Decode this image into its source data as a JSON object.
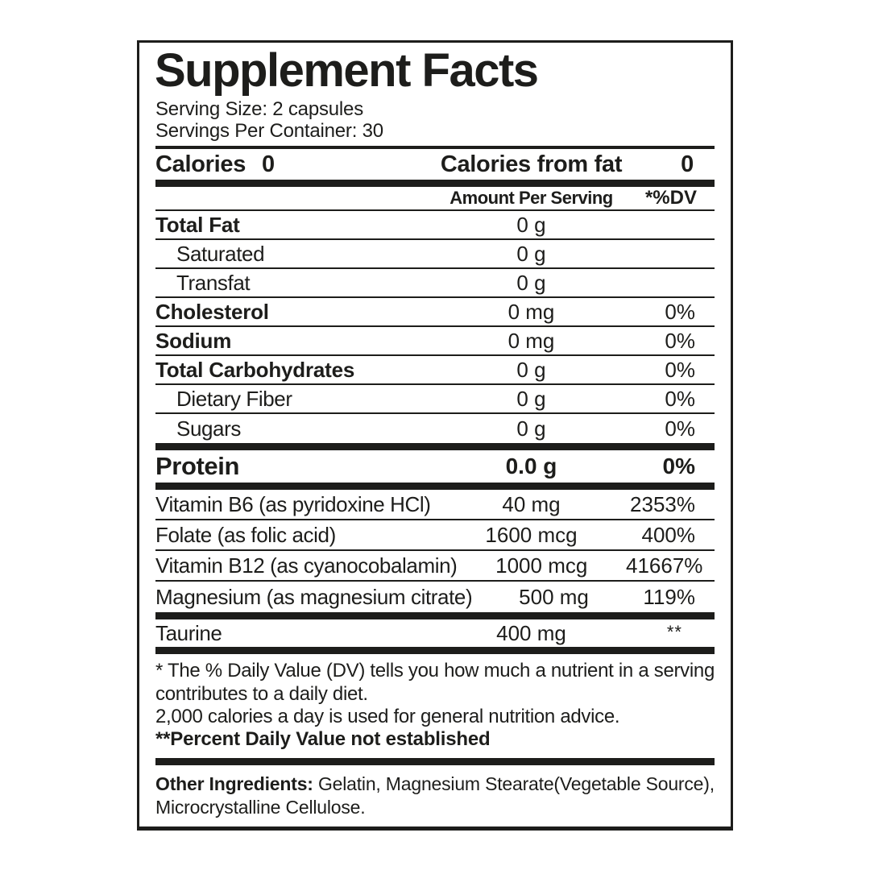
{
  "colors": {
    "ink": "#1d1d1b",
    "paper": "#ffffff"
  },
  "panel": {
    "title": "Supplement Facts",
    "serving_size": "Serving Size: 2 capsules",
    "servings_per_container": "Servings Per Container: 30",
    "calories_label": "Calories",
    "calories_value": "0",
    "calories_from_fat_label": "Calories from fat",
    "calories_from_fat_value": "0",
    "col_amount": "Amount Per Serving",
    "col_dv": "*%DV",
    "rows": [
      {
        "name": "Total Fat",
        "amount": "0 g",
        "dv": ""
      },
      {
        "name": "Saturated",
        "amount": "0 g",
        "dv": ""
      },
      {
        "name": "Transfat",
        "amount": "0 g",
        "dv": ""
      },
      {
        "name": "Cholesterol",
        "amount": "0 mg",
        "dv": "0%"
      },
      {
        "name": "Sodium",
        "amount": "0 mg",
        "dv": "0%"
      },
      {
        "name": "Total Carbohydrates",
        "amount": "0 g",
        "dv": "0%"
      },
      {
        "name": "Dietary Fiber",
        "amount": "0 g",
        "dv": "0%"
      },
      {
        "name": "Sugars",
        "amount": "0 g",
        "dv": "0%"
      },
      {
        "name": "Protein",
        "amount": "0.0 g",
        "dv": "0%"
      },
      {
        "name": "Vitamin B6 (as pyridoxine HCl)",
        "amount": "40 mg",
        "dv": "2353%"
      },
      {
        "name": "Folate (as folic acid)",
        "amount": "1600 mcg",
        "dv": "400%"
      },
      {
        "name": "Vitamin B12 (as cyanocobalamin)",
        "amount": "1000 mcg",
        "dv": "41667%"
      },
      {
        "name": "Magnesium (as magnesium citrate)",
        "amount": "500 mg",
        "dv": "119%"
      },
      {
        "name": "Taurine",
        "amount": "400 mg",
        "dv": "**"
      }
    ],
    "footnotes": {
      "daily_value": "* The % Daily Value (DV) tells you how much a nutrient in a serving contributes to a daily diet.",
      "calories_advice": "2,000 calories a day is used for general nutrition advice.",
      "not_established": "**Percent Daily Value not established"
    },
    "other_ingredients": {
      "label": "Other Ingredients:",
      "text": " Gelatin, Magnesium Stearate(Vegetable Source), Microcrystalline Cellulose."
    }
  }
}
